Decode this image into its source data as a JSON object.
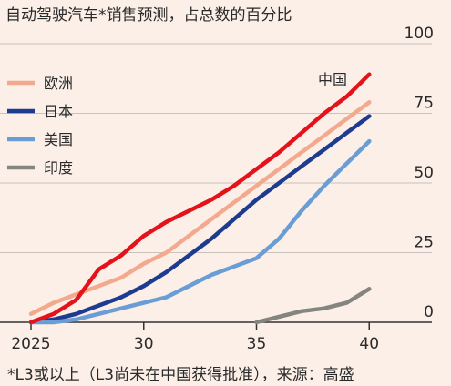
{
  "chart_data": {
    "type": "line",
    "title": "自动驾驶汽车*销售预测，占总数的百分比",
    "xlabel": "",
    "ylabel": "",
    "xlim": [
      2025,
      2041
    ],
    "ylim": [
      0,
      100
    ],
    "x_ticks": [
      2025,
      2030,
      2035,
      2040
    ],
    "x_tick_labels": [
      "2025",
      "30",
      "35",
      "40"
    ],
    "y_ticks": [
      0,
      25,
      50,
      75,
      100
    ],
    "grid": true,
    "legend_position": "top-left",
    "series": [
      {
        "name": "欧洲",
        "color": "#f3a98e",
        "x": [
          2025,
          2026,
          2027,
          2028,
          2029,
          2030,
          2031,
          2032,
          2033,
          2034,
          2035,
          2036,
          2037,
          2038,
          2039,
          2040
        ],
        "y": [
          3,
          7,
          10,
          13,
          16,
          21,
          25,
          31,
          37,
          43,
          49,
          55,
          61,
          67,
          73,
          79
        ]
      },
      {
        "name": "日本",
        "color": "#1d3b8f",
        "x": [
          2025,
          2026,
          2027,
          2028,
          2029,
          2030,
          2031,
          2032,
          2033,
          2034,
          2035,
          2036,
          2037,
          2038,
          2039,
          2040
        ],
        "y": [
          0,
          1,
          3,
          6,
          9,
          13,
          18,
          24,
          30,
          37,
          44,
          50,
          56,
          62,
          68,
          74
        ]
      },
      {
        "name": "美国",
        "color": "#6a9dd6",
        "x": [
          2025,
          2026,
          2027,
          2028,
          2029,
          2030,
          2031,
          2032,
          2033,
          2034,
          2035,
          2036,
          2037,
          2038,
          2039,
          2040
        ],
        "y": [
          0,
          0,
          1,
          3,
          5,
          7,
          9,
          13,
          17,
          20,
          23,
          30,
          40,
          49,
          57,
          65
        ]
      },
      {
        "name": "印度",
        "color": "#858580",
        "x": [
          2035,
          2036,
          2037,
          2038,
          2039,
          2040
        ],
        "y": [
          0,
          2,
          4,
          5,
          7,
          12
        ]
      },
      {
        "name": "中国",
        "color": "#e3121b",
        "x": [
          2025,
          2026,
          2027,
          2028,
          2029,
          2030,
          2031,
          2032,
          2033,
          2034,
          2035,
          2036,
          2037,
          2038,
          2039,
          2040
        ],
        "y": [
          0,
          3,
          8,
          19,
          24,
          31,
          36,
          40,
          44,
          49,
          55,
          61,
          68,
          75,
          81,
          89
        ]
      }
    ],
    "inline_label": "中国",
    "legend": [
      "欧洲",
      "日本",
      "美国",
      "印度"
    ],
    "footnote": "*L3或以上（L3尚未在中国获得批准），来源：高盛"
  }
}
